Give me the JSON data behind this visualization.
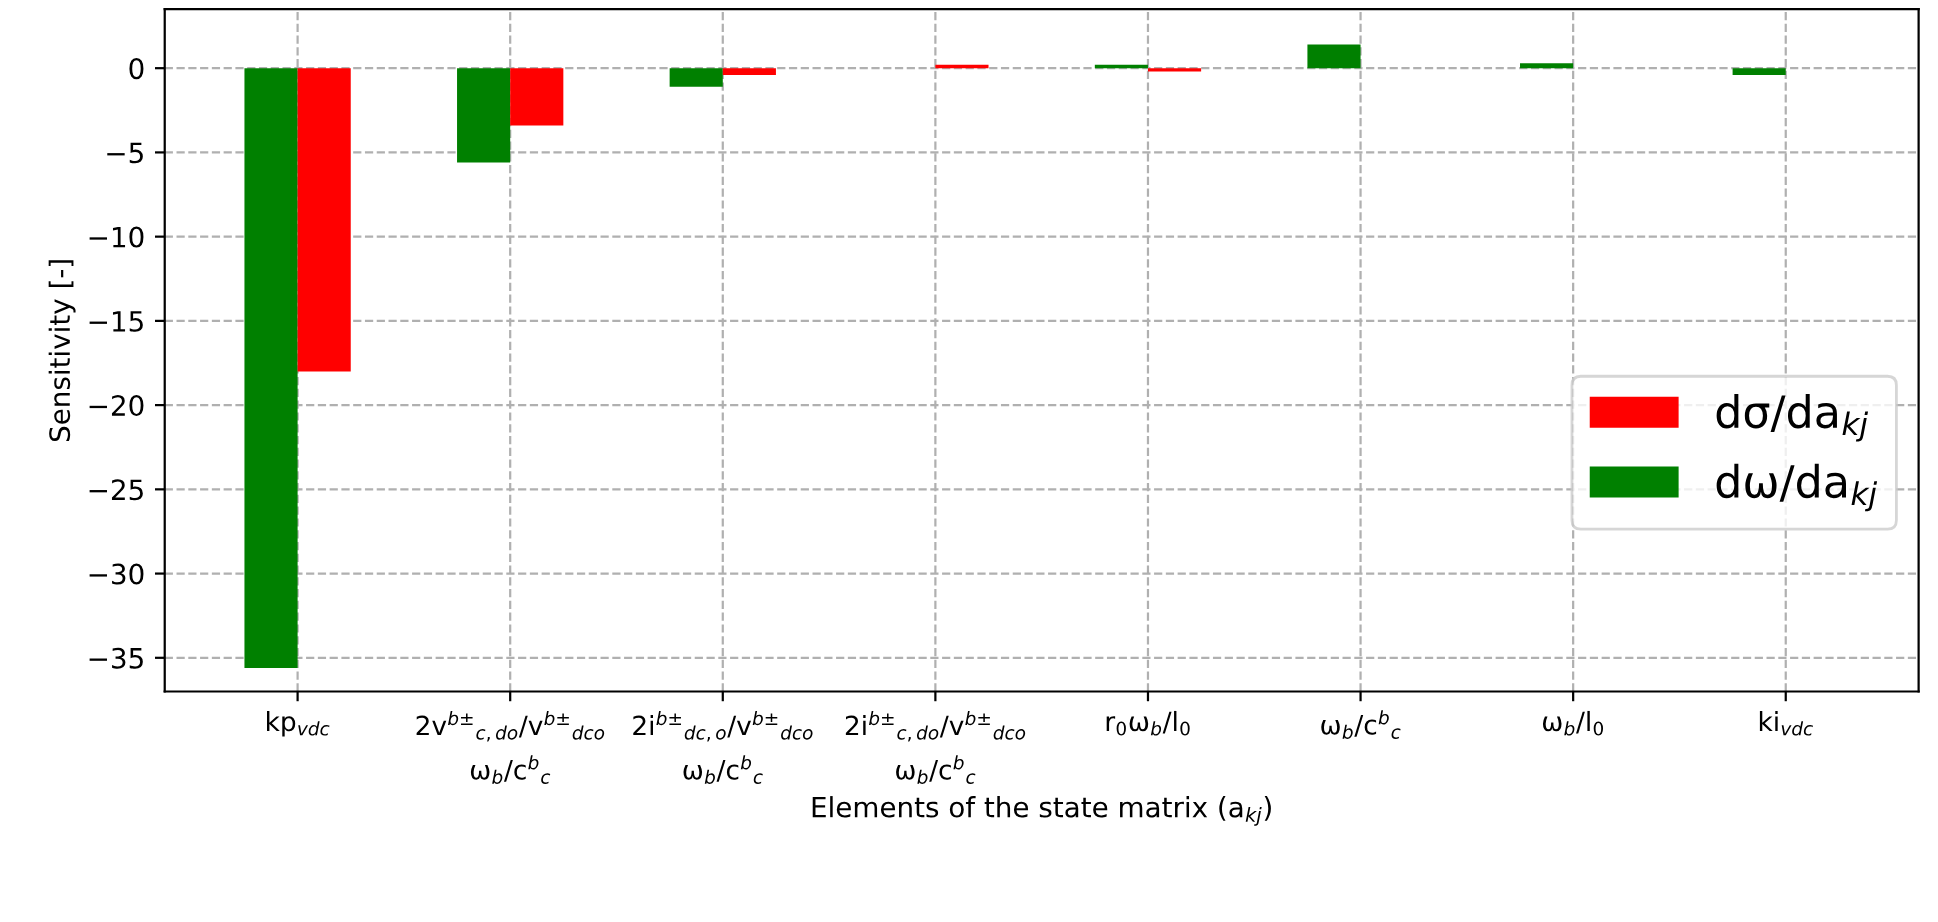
{
  "chart_data": {
    "type": "bar",
    "xlabel": "Elements of the state matrix (a$_{kj}$)",
    "ylabel": "Sensitivity [-]",
    "categories": [
      "kp$_{vdc}$",
      "2v$^{b±}$$_{c,do}$/v$^{b±}$$_{dco}$ ω$_{b}$/c$^{b}$$_{c}$",
      "2i$^{b±}$$_{dc,o}$/v$^{b±}$$_{dco}$ ω$_{b}$/c$^{b}$$_{c}$",
      "2i$^{b±}$$_{c,do}$/v$^{b±}$$_{dco}$ ω$_{b}$/c$^{b}$$_{c}$",
      "r$_{0}$ω$_{b}$/l$_{0}$",
      "ω$_{b}$/c$^{b}$$_{c}$",
      "ω$_{b}$/l$_{0}$",
      "ki$_{vdc}$"
    ],
    "series": [
      {
        "name": "dω/da$_{kj}$",
        "color": "#008000",
        "values": [
          -35.6,
          -5.6,
          -1.1,
          0,
          0.2,
          1.4,
          0.3,
          -0.4
        ]
      },
      {
        "name": "dσ/da$_{kj}$",
        "color": "#ff0000",
        "values": [
          -18,
          -3.4,
          -0.4,
          0.2,
          -0.2,
          0,
          0,
          0
        ]
      }
    ],
    "ylim": [
      -37,
      3.5
    ],
    "yticks": [
      -35,
      -30,
      -25,
      -20,
      -15,
      -10,
      -5,
      0
    ],
    "grid": true,
    "legend": "right"
  }
}
